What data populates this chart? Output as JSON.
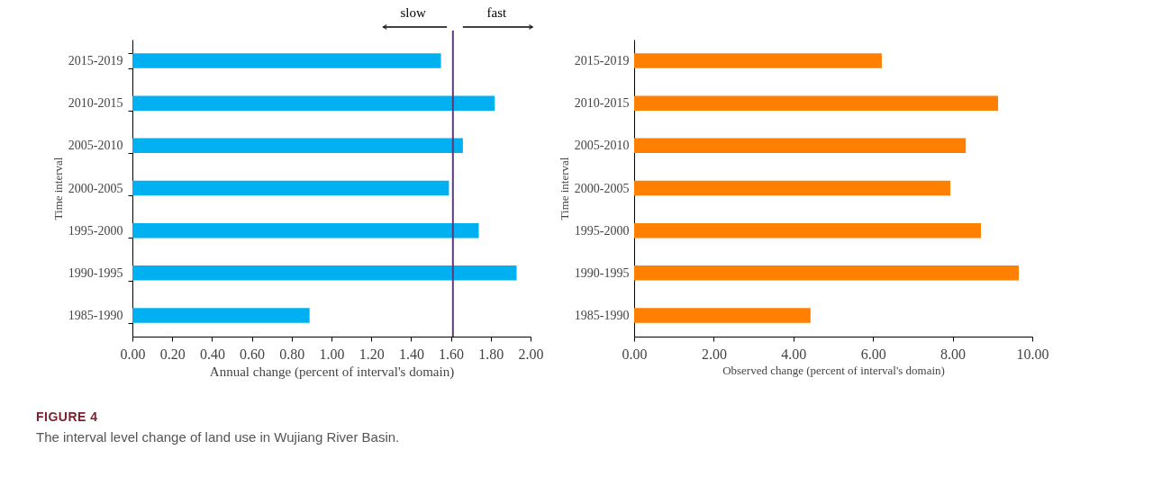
{
  "chart_data": [
    {
      "type": "bar",
      "orientation": "horizontal",
      "xlabel": "Annual change (percent of interval's domain)",
      "ylabel": "Time interval",
      "categories": [
        "2015-2019",
        "2010-2015",
        "2005-2010",
        "2000-2005",
        "1995-2000",
        "1990-1995",
        "1985-1990"
      ],
      "values": [
        1.55,
        1.82,
        1.66,
        1.59,
        1.74,
        1.93,
        0.89
      ],
      "color": "#00b0f0",
      "xlim": [
        0,
        2
      ],
      "xticks": [
        {
          "value": 0,
          "label": "0.00"
        },
        {
          "value": 0.2,
          "label": "0.20"
        },
        {
          "value": 0.4,
          "label": "0.40"
        },
        {
          "value": 0.6,
          "label": "0.60"
        },
        {
          "value": 0.8,
          "label": "0.80"
        },
        {
          "value": 1,
          "label": "1.00"
        },
        {
          "value": 1.2,
          "label": "1.20"
        },
        {
          "value": 1.4,
          "label": "1.40"
        },
        {
          "value": 1.6,
          "label": "1.60"
        },
        {
          "value": 1.8,
          "label": "1.80"
        },
        {
          "value": 2,
          "label": "2.00"
        }
      ],
      "ref_lines": [
        {
          "axis": "x",
          "value": 1.61,
          "color": "#5b3a7a"
        }
      ],
      "annotations": [
        "slow",
        "fast"
      ]
    },
    {
      "type": "bar",
      "orientation": "horizontal",
      "xlabel": "Observed change (percent of interval's domain)",
      "ylabel": "Time interval",
      "categories": [
        "2015-2019",
        "2010-2015",
        "2005-2010",
        "2000-2005",
        "1995-2000",
        "1990-1995",
        "1985-1990"
      ],
      "values": [
        6.22,
        9.14,
        8.33,
        7.94,
        8.71,
        9.66,
        4.43
      ],
      "color": "#ff7f00",
      "xlim": [
        0,
        10
      ],
      "xticks": [
        {
          "value": 0,
          "label": "0.00"
        },
        {
          "value": 2,
          "label": "2.00"
        },
        {
          "value": 4,
          "label": "4.00"
        },
        {
          "value": 6,
          "label": "6.00"
        },
        {
          "value": 8,
          "label": "8.00"
        },
        {
          "value": 10,
          "label": "10.00"
        }
      ],
      "annotations": [
        "FIGURE 4",
        "The interval level change of land use in Wujiang River Basin."
      ]
    }
  ]
}
